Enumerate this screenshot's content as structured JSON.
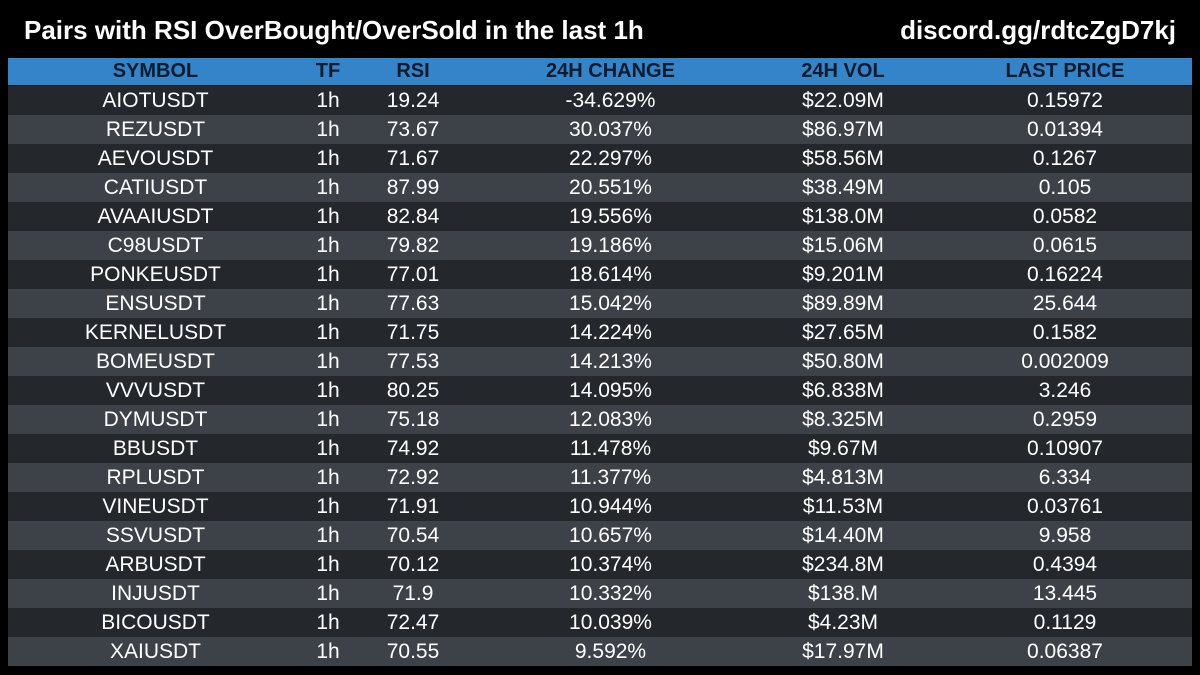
{
  "header": {
    "title": "Pairs with RSI OverBought/OverSold in the last 1h",
    "link": "discord.gg/rdtcZgD7kj"
  },
  "table": {
    "columns": [
      "SYMBOL",
      "TF",
      "RSI",
      "24H CHANGE",
      "24H VOL",
      "LAST PRICE"
    ],
    "rows": [
      [
        "AIOTUSDT",
        "1h",
        "19.24",
        "-34.629%",
        "$22.09M",
        "0.15972"
      ],
      [
        "REZUSDT",
        "1h",
        "73.67",
        "30.037%",
        "$86.97M",
        "0.01394"
      ],
      [
        "AEVOUSDT",
        "1h",
        "71.67",
        "22.297%",
        "$58.56M",
        "0.1267"
      ],
      [
        "CATIUSDT",
        "1h",
        "87.99",
        "20.551%",
        "$38.49M",
        "0.105"
      ],
      [
        "AVAAIUSDT",
        "1h",
        "82.84",
        "19.556%",
        "$138.0M",
        "0.0582"
      ],
      [
        "C98USDT",
        "1h",
        "79.82",
        "19.186%",
        "$15.06M",
        "0.0615"
      ],
      [
        "PONKEUSDT",
        "1h",
        "77.01",
        "18.614%",
        "$9.201M",
        "0.16224"
      ],
      [
        "ENSUSDT",
        "1h",
        "77.63",
        "15.042%",
        "$89.89M",
        "25.644"
      ],
      [
        "KERNELUSDT",
        "1h",
        "71.75",
        "14.224%",
        "$27.65M",
        "0.1582"
      ],
      [
        "BOMEUSDT",
        "1h",
        "77.53",
        "14.213%",
        "$50.80M",
        "0.002009"
      ],
      [
        "VVVUSDT",
        "1h",
        "80.25",
        "14.095%",
        "$6.838M",
        "3.246"
      ],
      [
        "DYMUSDT",
        "1h",
        "75.18",
        "12.083%",
        "$8.325M",
        "0.2959"
      ],
      [
        "BBUSDT",
        "1h",
        "74.92",
        "11.478%",
        "$9.67M",
        "0.10907"
      ],
      [
        "RPLUSDT",
        "1h",
        "72.92",
        "11.377%",
        "$4.813M",
        "6.334"
      ],
      [
        "VINEUSDT",
        "1h",
        "71.91",
        "10.944%",
        "$11.53M",
        "0.03761"
      ],
      [
        "SSVUSDT",
        "1h",
        "70.54",
        "10.657%",
        "$14.40M",
        "9.958"
      ],
      [
        "ARBUSDT",
        "1h",
        "70.12",
        "10.374%",
        "$234.8M",
        "0.4394"
      ],
      [
        "INJUSDT",
        "1h",
        "71.9",
        "10.332%",
        "$138.M",
        "13.445"
      ],
      [
        "BICOUSDT",
        "1h",
        "72.47",
        "10.039%",
        "$4.23M",
        "0.1129"
      ],
      [
        "XAIUSDT",
        "1h",
        "70.55",
        "9.592%",
        "$17.97M",
        "0.06387"
      ]
    ]
  }
}
